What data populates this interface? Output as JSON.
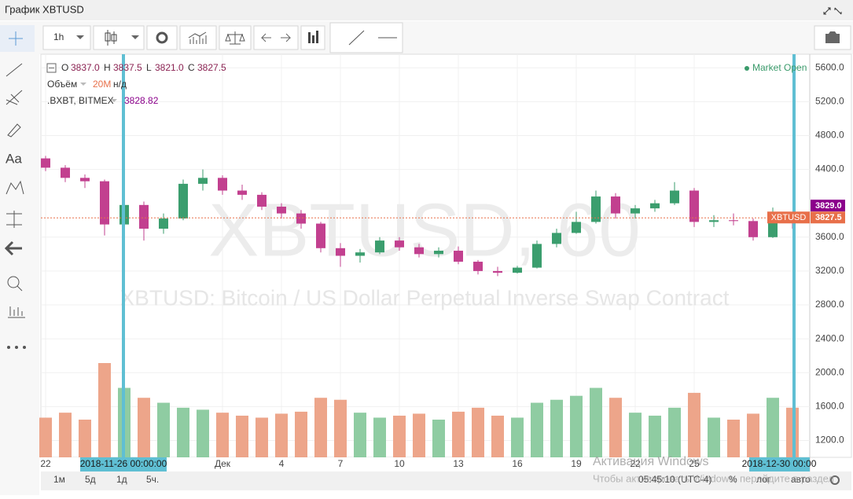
{
  "header": {
    "title": "График XBTUSD"
  },
  "toolbar": {
    "interval": "1h"
  },
  "chart_data": {
    "type": "candlestick",
    "watermark": "XBTUSD, 60",
    "description": "XBTUSD: Bitcoin / US Dollar Perpetual Inverse Swap Contract",
    "legend": {
      "o": "O",
      "open": "3837.0",
      "h": "H",
      "high": "3837.5",
      "l": "L",
      "low": "3821.0",
      "c": "C",
      "close": "3827.5",
      "volume_label": "Объём",
      "volume_ma": "20M",
      "volume_na": "н/д",
      "index_name": ".BXBT, BITMEX",
      "index_value": "3828.82",
      "status": "Market Open"
    },
    "categories": [
      "22",
      null,
      null,
      null,
      null,
      null,
      null,
      null,
      null,
      "Дек",
      null,
      null,
      "4",
      null,
      null,
      "7",
      null,
      null,
      "10",
      null,
      null,
      "13",
      null,
      null,
      "16",
      null,
      null,
      "19",
      null,
      null,
      "22",
      null,
      null,
      "25",
      null,
      null,
      null,
      null,
      null
    ],
    "ohlc": [
      [
        4530,
        4560,
        4380,
        4420
      ],
      [
        4420,
        4450,
        4250,
        4300
      ],
      [
        4300,
        4340,
        4180,
        4260
      ],
      [
        4260,
        4280,
        3620,
        3750
      ],
      [
        3750,
        4080,
        3680,
        3980
      ],
      [
        3980,
        4020,
        3560,
        3700
      ],
      [
        3700,
        3880,
        3640,
        3820
      ],
      [
        3820,
        4280,
        3800,
        4230
      ],
      [
        4230,
        4400,
        4150,
        4300
      ],
      [
        4300,
        4330,
        4100,
        4150
      ],
      [
        4150,
        4220,
        4040,
        4100
      ],
      [
        4100,
        4130,
        3920,
        3960
      ],
      [
        3960,
        4000,
        3820,
        3880
      ],
      [
        3880,
        3920,
        3700,
        3760
      ],
      [
        3760,
        3780,
        3420,
        3470
      ],
      [
        3470,
        3530,
        3250,
        3380
      ],
      [
        3380,
        3460,
        3300,
        3420
      ],
      [
        3420,
        3600,
        3400,
        3560
      ],
      [
        3560,
        3600,
        3440,
        3480
      ],
      [
        3480,
        3520,
        3360,
        3400
      ],
      [
        3400,
        3480,
        3360,
        3440
      ],
      [
        3440,
        3490,
        3280,
        3310
      ],
      [
        3310,
        3330,
        3160,
        3200
      ],
      [
        3200,
        3250,
        3140,
        3180
      ],
      [
        3180,
        3260,
        3170,
        3240
      ],
      [
        3240,
        3560,
        3230,
        3520
      ],
      [
        3520,
        3700,
        3480,
        3650
      ],
      [
        3650,
        3900,
        3640,
        3780
      ],
      [
        3780,
        4150,
        3760,
        4080
      ],
      [
        4080,
        4120,
        3820,
        3880
      ],
      [
        3880,
        3980,
        3820,
        3940
      ],
      [
        3940,
        4040,
        3900,
        4000
      ],
      [
        4000,
        4250,
        3980,
        4150
      ],
      [
        4150,
        4180,
        3720,
        3780
      ],
      [
        3780,
        3860,
        3720,
        3800
      ],
      [
        3800,
        3880,
        3740,
        3790
      ],
      [
        3790,
        3820,
        3560,
        3600
      ],
      [
        3600,
        3950,
        3590,
        3860
      ],
      [
        3860,
        3900,
        3700,
        3827.5
      ]
    ],
    "volume": [
      40,
      45,
      38,
      95,
      70,
      60,
      55,
      50,
      48,
      45,
      42,
      40,
      44,
      46,
      60,
      58,
      45,
      40,
      42,
      44,
      38,
      46,
      50,
      42,
      40,
      55,
      58,
      62,
      70,
      60,
      45,
      42,
      50,
      65,
      40,
      38,
      44,
      60,
      50
    ],
    "up_color": "#3b9e6e",
    "down_color": "#c2408f",
    "vol_up_color": "#8fcca2",
    "vol_down_color": "#eda58a",
    "ylim": [
      1000,
      5760
    ],
    "yticks": [
      {
        "value": 5600,
        "label": "5600.0"
      },
      {
        "value": 5200,
        "label": "5200.0"
      },
      {
        "value": 4800,
        "label": "4800.0"
      },
      {
        "value": 4400,
        "label": "4400.0"
      },
      {
        "value": 3600,
        "label": "3600.0"
      },
      {
        "value": 3200,
        "label": "3200.0"
      },
      {
        "value": 2800,
        "label": "2800.0"
      },
      {
        "value": 2400,
        "label": "2400.0"
      },
      {
        "value": 2000,
        "label": "2000.0"
      },
      {
        "value": 1600,
        "label": "1600.0"
      },
      {
        "value": 1200,
        "label": "1200.0"
      }
    ],
    "index_price": {
      "value": 3829.0,
      "label": "3829.0"
    },
    "last_price": {
      "name": "XBTUSD",
      "value": 3827.5,
      "label": "3827.5"
    },
    "cursor_labels": [
      "2018-11-26 00:00:00",
      "2018-12-30 00:00"
    ]
  },
  "footer": {
    "ranges": [
      "1м",
      "5д",
      "1д",
      "5ч."
    ],
    "time": "05:45:10 (UTC-4)",
    "percent": "%",
    "log": "лог",
    "auto": "авто"
  },
  "overlay": {
    "title": "Активация Windows",
    "text": "Чтобы активировать Windows, перейдите в раздел"
  }
}
